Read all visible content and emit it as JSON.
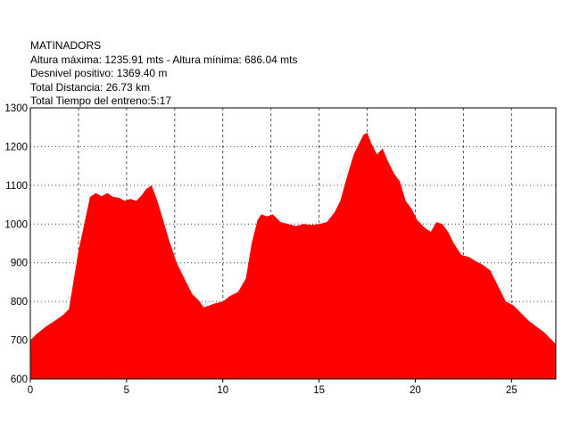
{
  "info": {
    "name": "MATINADORS",
    "altitude_line": "Altura máxima: 1235.91 mts - Altura mínima: 686.04 mts",
    "elevation_gain_line": "Desnivel positivo: 1369.40 m",
    "distance_line": "Total Distancia: 26.73 km",
    "time_line": "Total Tiempo del entreno:5:17"
  },
  "chart_data": {
    "type": "area",
    "title": "MATINADORS",
    "xlabel": "",
    "ylabel": "",
    "xlim": [
      0,
      27.3
    ],
    "ylim": [
      600,
      1300
    ],
    "x_ticks": [
      0,
      5,
      10,
      15,
      20,
      25
    ],
    "y_ticks": [
      600,
      700,
      800,
      900,
      1000,
      1100,
      1200,
      1300
    ],
    "grid": "vertical-dashed-and-horizontal-dotted",
    "fill_color": "#ff0000",
    "series": [
      {
        "x": [
          0,
          0.3,
          0.8,
          1.2,
          1.7,
          2.0,
          2.2,
          2.5,
          2.8,
          3.1,
          3.4,
          3.7,
          4.0,
          4.3,
          4.6,
          4.9,
          5.2,
          5.5,
          5.8,
          6.0,
          6.3,
          6.6,
          6.9,
          7.2,
          7.6,
          8.0,
          8.4,
          8.8,
          9.0,
          9.3,
          9.6,
          10.0,
          10.4,
          10.8,
          11.2,
          11.5,
          11.8,
          12.0,
          12.3,
          12.6,
          13.0,
          13.4,
          13.8,
          14.2,
          14.6,
          15.0,
          15.4,
          15.8,
          16.1,
          16.5,
          16.8,
          17.1,
          17.3,
          17.5,
          17.7,
          18.0,
          18.3,
          18.6,
          18.9,
          19.2,
          19.5,
          19.8,
          20.1,
          20.5,
          20.8,
          21.1,
          21.4,
          21.7,
          22.0,
          22.4,
          22.8,
          23.1,
          23.5,
          23.9,
          24.3,
          24.7,
          25.1,
          25.5,
          25.9,
          26.3,
          26.7,
          27.0,
          27.3
        ],
        "y": [
          700,
          715,
          735,
          748,
          765,
          780,
          840,
          930,
          1000,
          1070,
          1080,
          1072,
          1080,
          1070,
          1068,
          1060,
          1065,
          1060,
          1075,
          1090,
          1100,
          1060,
          1010,
          960,
          900,
          860,
          820,
          800,
          785,
          790,
          795,
          800,
          815,
          825,
          860,
          950,
          1010,
          1025,
          1020,
          1025,
          1005,
          1000,
          995,
          1000,
          998,
          1000,
          1005,
          1030,
          1060,
          1130,
          1180,
          1210,
          1230,
          1236,
          1210,
          1180,
          1195,
          1160,
          1130,
          1110,
          1060,
          1040,
          1010,
          990,
          980,
          1005,
          1000,
          980,
          950,
          920,
          915,
          905,
          895,
          880,
          840,
          800,
          790,
          770,
          750,
          735,
          720,
          705,
          690
        ]
      }
    ]
  }
}
